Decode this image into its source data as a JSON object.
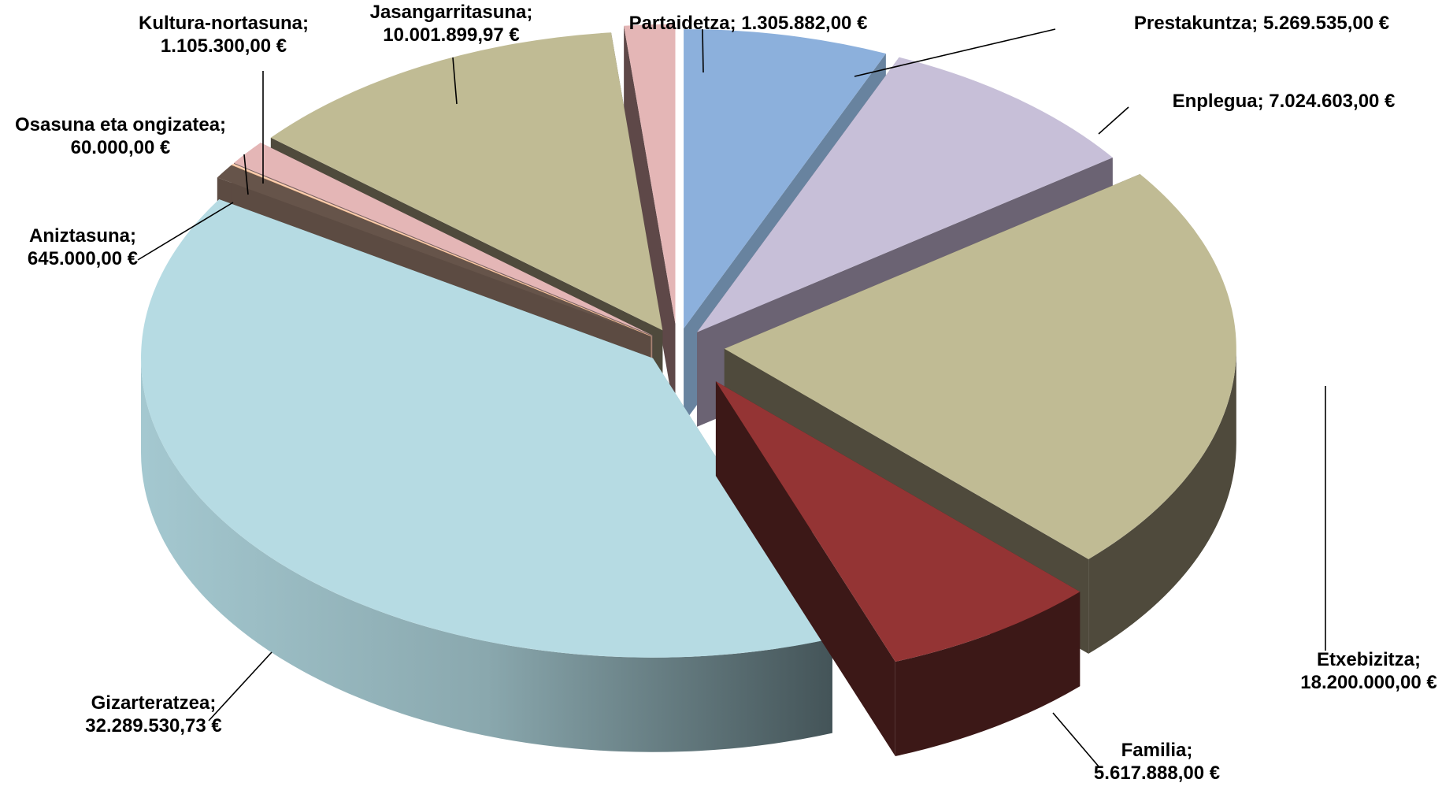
{
  "chart_data": {
    "type": "pie",
    "title": "",
    "slices": [
      {
        "name": "Prestakuntza",
        "value": 5269535.0,
        "label": "Prestakuntza; 5.269.535,00 €",
        "color": "#8cb0dc"
      },
      {
        "name": "Enplegua",
        "value": 7024603.0,
        "label": "Enplegua; 7.024.603,00 €",
        "color": "#c7bfd8"
      },
      {
        "name": "Etxebizitza",
        "value": 18200000.0,
        "label": "Etxebizitza; 18.200.000,00 €",
        "color": "#c0bb94"
      },
      {
        "name": "Familia",
        "value": 5617888.0,
        "label": "Familia; 5.617.888,00 €",
        "color": "#943434"
      },
      {
        "name": "Gizarteratzea",
        "value": 32289530.73,
        "label": "Gizarteratzea; 32.289.530,73 €",
        "color": "#b6dbe3"
      },
      {
        "name": "Aniztasuna",
        "value": 645000.0,
        "label": "Aniztasuna; 645.000,00 €",
        "color": "#66544a"
      },
      {
        "name": "Osasuna eta ongizatea",
        "value": 60000.0,
        "label": "Osasuna eta ongizatea; 60.000,00 €",
        "color": "#fbcfb0"
      },
      {
        "name": "Kultura-nortasuna",
        "value": 1105300.0,
        "label": "Kultura-nortasuna; 1.105.300,00 €",
        "color": "#e4b6b6"
      },
      {
        "name": "Jasangarritasuna",
        "value": 10001899.97,
        "label": "Jasangarritasuna; 10.001.899,97 €",
        "color": "#c0bb94"
      },
      {
        "name": "Partaidetza",
        "value": 1305882.0,
        "label": "Partaidetza; 1.305.882,00 €",
        "color": "#e4b6b6"
      }
    ],
    "label_lines": [
      [
        "Prestakuntza; 5.269.535,00 €"
      ],
      [
        "Enplegua; 7.024.603,00 €"
      ],
      [
        "Etxebizitza;",
        "18.200.000,00 €"
      ],
      [
        "Familia;",
        "5.617.888,00 €"
      ],
      [
        "Gizarteratzea;",
        "32.289.530,73 €"
      ],
      [
        "Aniztasuna;",
        "645.000,00 €"
      ],
      [
        "Osasuna eta ongizatea;",
        "60.000,00 €"
      ],
      [
        "Kultura-nortasuna;",
        "1.105.300,00 €"
      ],
      [
        "Jasangarritasuna;",
        "10.001.899,97 €"
      ],
      [
        "Partaidetza; 1.305.882,00 €"
      ]
    ],
    "style": "3d-exploded",
    "legend": "none"
  }
}
